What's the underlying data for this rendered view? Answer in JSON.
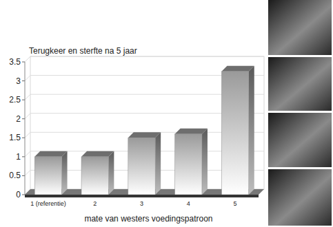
{
  "chart_data": {
    "type": "bar",
    "title": "Terugkeer en sterfte na 5 jaar",
    "x_label": "mate van westers voedingspatroon",
    "categories": [
      "1 (referentie)",
      "2",
      "3",
      "4",
      "5"
    ],
    "values": [
      1.0,
      1.0,
      1.5,
      1.6,
      3.25
    ],
    "color": "#9a9a9a",
    "ylim": [
      0,
      3.5
    ],
    "yticks": [
      0,
      0.5,
      1,
      1.5,
      2,
      2.5,
      3,
      3.5
    ],
    "grid": true
  }
}
